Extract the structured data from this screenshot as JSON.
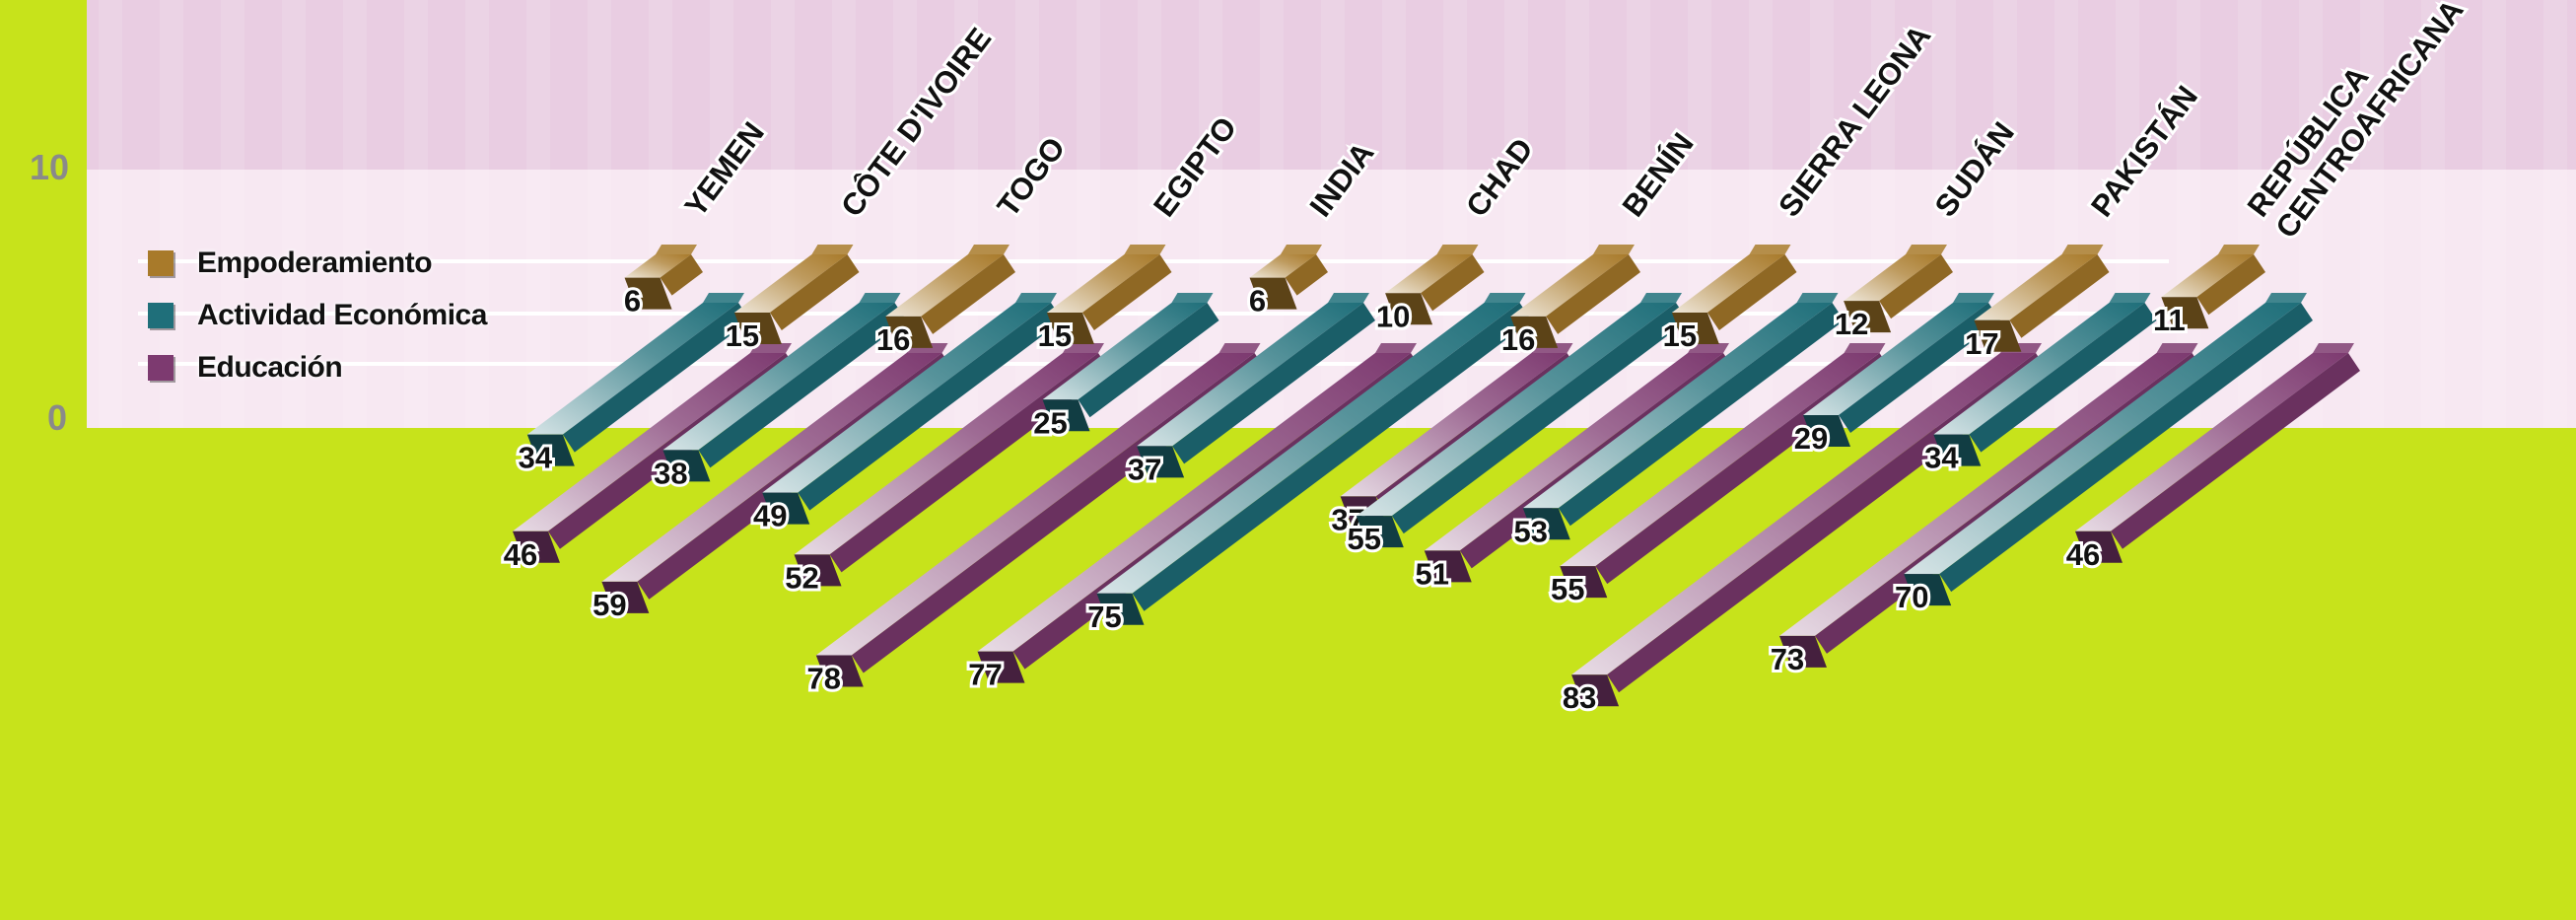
{
  "chart_data": {
    "type": "bar",
    "y_ticks": [
      "10",
      "0"
    ],
    "categories": [
      "YEMEN",
      "CÔTE D'IVOIRE",
      "TOGO",
      "EGIPTO",
      "INDIA",
      "CHAD",
      "BENÍN",
      "SIERRA LEONA",
      "SUDÁN",
      "PAKISTÁN",
      "REPÚBLICA CENTROAFRICANA"
    ],
    "series": [
      {
        "name": "Empoderamiento",
        "color": "#a87a2a",
        "values": [
          6,
          15,
          16,
          15,
          6,
          10,
          16,
          15,
          12,
          17,
          11
        ]
      },
      {
        "name": "Actividad Económica",
        "color": "#1f6f7a",
        "values": [
          34,
          38,
          49,
          25,
          37,
          75,
          55,
          53,
          29,
          34,
          70
        ]
      },
      {
        "name": "Educación",
        "color": "#7d3a70",
        "values": [
          46,
          59,
          52,
          78,
          77,
          37,
          51,
          55,
          83,
          73,
          46
        ]
      }
    ]
  }
}
